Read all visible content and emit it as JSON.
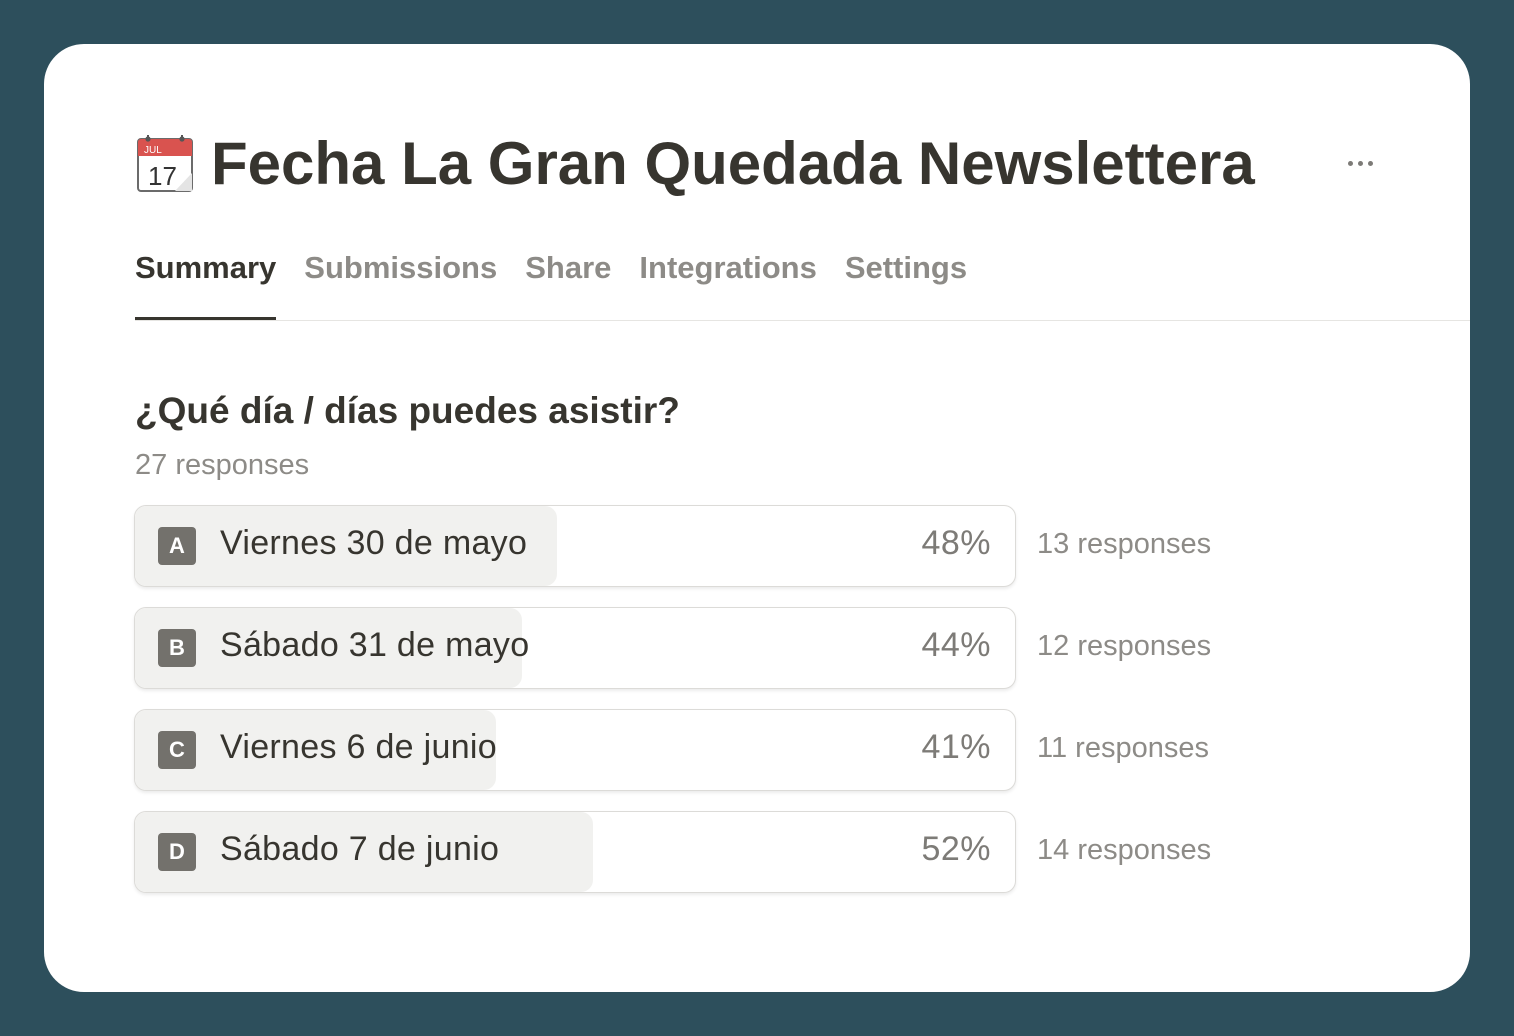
{
  "header": {
    "title": "Fecha La Gran Quedada Newslettera",
    "icon": "calendar-icon",
    "calendar_month": "JUL",
    "calendar_day": "17",
    "more_icon": "more-horizontal-icon"
  },
  "tabs": [
    {
      "label": "Summary",
      "active": true
    },
    {
      "label": "Submissions",
      "active": false
    },
    {
      "label": "Share",
      "active": false
    },
    {
      "label": "Integrations",
      "active": false
    },
    {
      "label": "Settings",
      "active": false
    }
  ],
  "question": {
    "title": "¿Qué día / días puedes asistir?",
    "total": "27 responses",
    "options": [
      {
        "letter": "A",
        "label": "Viernes 30 de mayo",
        "percent": "48%",
        "fraction": 0.48,
        "count": "13 responses"
      },
      {
        "letter": "B",
        "label": "Sábado 31 de mayo",
        "percent": "44%",
        "fraction": 0.44,
        "count": "12 responses"
      },
      {
        "letter": "C",
        "label": "Viernes 6 de junio",
        "percent": "41%",
        "fraction": 0.41,
        "count": "11 responses"
      },
      {
        "letter": "D",
        "label": "Sábado 7 de junio",
        "percent": "52%",
        "fraction": 0.52,
        "count": "14 responses"
      }
    ]
  },
  "colors": {
    "background": "#2d4f5c",
    "card": "#ffffff",
    "text_primary": "#37352f",
    "text_secondary": "#8d8b87",
    "bar_fill": "#f1f1ef",
    "letter_badge": "#73716c",
    "calendar_red": "#d9534f"
  }
}
